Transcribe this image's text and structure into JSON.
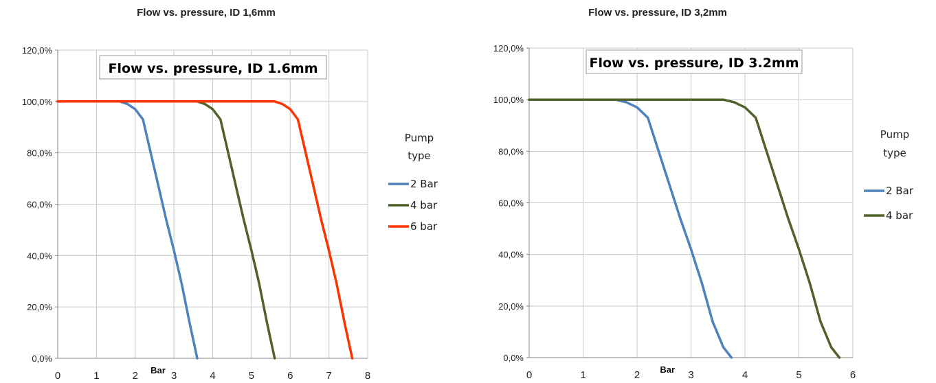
{
  "chart_data": [
    {
      "type": "line",
      "title": "Flow vs. pressure, ID 1,6mm",
      "inner_title": "Flow vs. pressure, ID 1.6mm",
      "xlabel": "Bar",
      "ylabel": "",
      "xlim": [
        0,
        8
      ],
      "ylim": [
        0,
        120
      ],
      "x_ticks": [
        "0",
        "1",
        "2",
        "3",
        "4",
        "5",
        "6",
        "7",
        "8"
      ],
      "y_ticks": [
        "0,0%",
        "20,0%",
        "40,0%",
        "60,0%",
        "80,0%",
        "100,0%",
        "120,0%"
      ],
      "grid": true,
      "legend_title": "Pump type",
      "legend_position": "right",
      "series": [
        {
          "name": "2 Bar",
          "color": "#4f81bd",
          "x": [
            0,
            1.6,
            1.8,
            2.0,
            2.2,
            2.4,
            2.6,
            2.8,
            3.0,
            3.2,
            3.4,
            3.6
          ],
          "y": [
            100,
            100,
            99,
            97,
            93,
            80,
            67,
            54,
            42,
            29,
            14,
            0
          ]
        },
        {
          "name": "4 bar",
          "color": "#4f6228",
          "x": [
            0,
            3.6,
            3.8,
            4.0,
            4.2,
            4.4,
            4.6,
            4.8,
            5.0,
            5.2,
            5.4,
            5.6
          ],
          "y": [
            100,
            100,
            99,
            97,
            93,
            80,
            67,
            54,
            42,
            29,
            14,
            0
          ]
        },
        {
          "name": "6 bar",
          "color": "#ff3300",
          "x": [
            0,
            5.6,
            5.8,
            6.0,
            6.2,
            6.4,
            6.6,
            6.8,
            7.0,
            7.2,
            7.4,
            7.6
          ],
          "y": [
            100,
            100,
            99,
            97,
            93,
            80,
            67,
            54,
            42,
            29,
            14,
            0
          ]
        }
      ]
    },
    {
      "type": "line",
      "title": "Flow vs. pressure, ID 3,2mm",
      "inner_title": "Flow vs. pressure, ID 3.2mm",
      "xlabel": "Bar",
      "ylabel": "",
      "xlim": [
        0,
        6
      ],
      "ylim": [
        0,
        120
      ],
      "x_ticks": [
        "0",
        "1",
        "2",
        "3",
        "4",
        "5",
        "6"
      ],
      "y_ticks": [
        "0,0%",
        "20,0%",
        "40,0%",
        "60,0%",
        "80,0%",
        "100,0%",
        "120,0%"
      ],
      "grid": true,
      "legend_title": "Pump type",
      "legend_position": "right",
      "series": [
        {
          "name": "2 Bar",
          "color": "#4f81bd",
          "x": [
            0,
            1.6,
            1.8,
            2.0,
            2.2,
            2.4,
            2.6,
            2.8,
            3.0,
            3.2,
            3.4,
            3.6,
            3.75
          ],
          "y": [
            100,
            100,
            99,
            97,
            93,
            80,
            67,
            54,
            42,
            29,
            14,
            4,
            0
          ]
        },
        {
          "name": "4 bar",
          "color": "#4f6228",
          "x": [
            0,
            3.6,
            3.8,
            4.0,
            4.2,
            4.4,
            4.6,
            4.8,
            5.0,
            5.2,
            5.4,
            5.6,
            5.75
          ],
          "y": [
            100,
            100,
            99,
            97,
            93,
            80,
            67,
            54,
            42,
            29,
            14,
            4,
            0
          ]
        }
      ]
    }
  ]
}
